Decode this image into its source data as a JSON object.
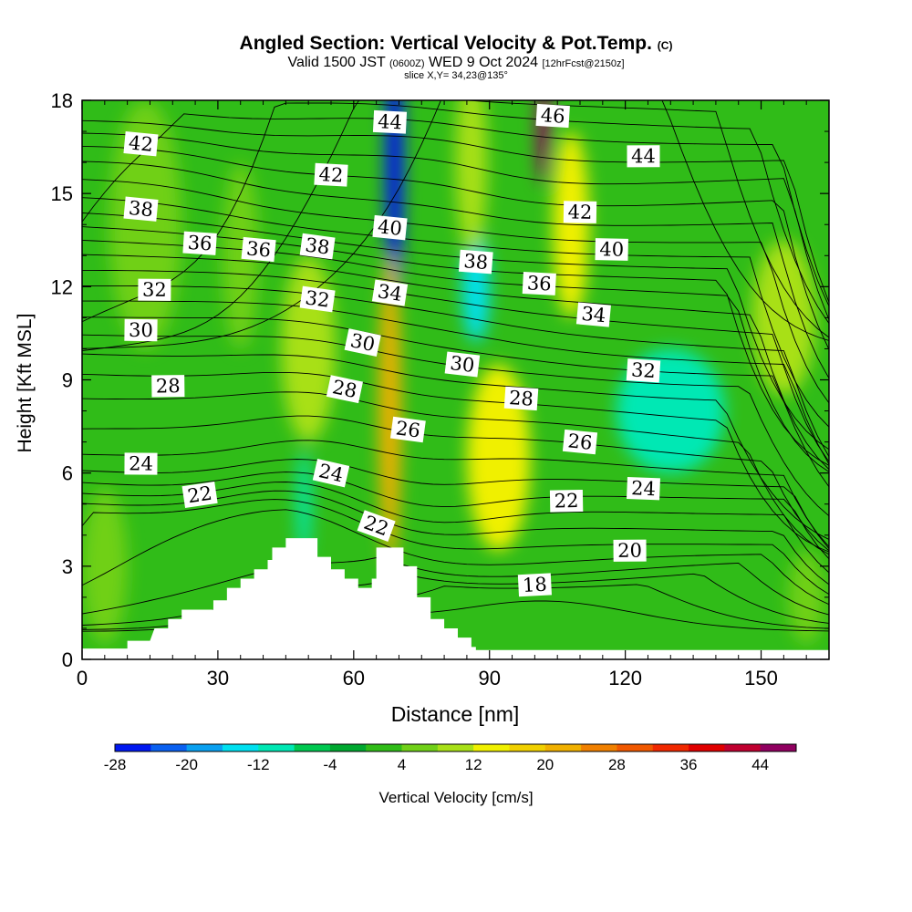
{
  "header": {
    "title": "Angled Section: Vertical Velocity & Pot.Temp.",
    "title_units": "(C)",
    "valid_prefix": "Valid 1500 JST",
    "valid_utc": "(0600Z)",
    "valid_date": "WED 9 Oct 2024",
    "forecast_info": "[12hrFcst@2150z]",
    "slice": "slice X,Y= 34,23@135°"
  },
  "chart_data": {
    "type": "heatmap",
    "xlabel": "Distance [nm]",
    "ylabel": "Height [Kft MSL]",
    "xlim": [
      0,
      165
    ],
    "ylim": [
      0,
      18
    ],
    "x_ticks": [
      0,
      30,
      60,
      90,
      120,
      150
    ],
    "y_ticks": [
      0,
      3,
      6,
      9,
      12,
      15,
      18
    ],
    "grid": false,
    "colorbar": {
      "label": "Vertical Velocity [cm/s]",
      "tick_labels": [
        "-28",
        "-20",
        "-12",
        "-4",
        "4",
        "12",
        "20",
        "28",
        "36",
        "44"
      ],
      "bins": [
        -28,
        -24,
        -20,
        -16,
        -12,
        -8,
        -4,
        0,
        4,
        8,
        12,
        16,
        20,
        24,
        28,
        32,
        36,
        40,
        44,
        48
      ],
      "colors": [
        "#0018f0",
        "#0a60f0",
        "#0aa0f0",
        "#00e0f0",
        "#00e8b4",
        "#00c850",
        "#00a830",
        "#30bc18",
        "#70d018",
        "#a8e018",
        "#f0f000",
        "#f0d000",
        "#f0b000",
        "#f08000",
        "#f05800",
        "#f02800",
        "#e00000",
        "#c00030",
        "#900060"
      ]
    },
    "terrain": [
      [
        0,
        0.35
      ],
      [
        10,
        0.35
      ],
      [
        10,
        0.6
      ],
      [
        15,
        0.6
      ],
      [
        16,
        1
      ],
      [
        19,
        1
      ],
      [
        19,
        1.3
      ],
      [
        22,
        1.3
      ],
      [
        22,
        1.6
      ],
      [
        29,
        1.6
      ],
      [
        29,
        1.9
      ],
      [
        32,
        1.9
      ],
      [
        32,
        2.3
      ],
      [
        35,
        2.3
      ],
      [
        35,
        2.6
      ],
      [
        38,
        2.6
      ],
      [
        38,
        2.9
      ],
      [
        41,
        2.9
      ],
      [
        41,
        3.2
      ],
      [
        42,
        3.2
      ],
      [
        42,
        3.6
      ],
      [
        45,
        3.6
      ],
      [
        45,
        3.9
      ],
      [
        52,
        3.9
      ],
      [
        52,
        3.3
      ],
      [
        55,
        3.3
      ],
      [
        55,
        2.9
      ],
      [
        58,
        2.9
      ],
      [
        58,
        2.6
      ],
      [
        61,
        2.6
      ],
      [
        61,
        2.3
      ],
      [
        64,
        2.3
      ],
      [
        64,
        2.6
      ],
      [
        65,
        2.6
      ],
      [
        65,
        3.6
      ],
      [
        71,
        3.6
      ],
      [
        71,
        3.0
      ],
      [
        74,
        3.0
      ],
      [
        74,
        2.0
      ],
      [
        77,
        2.0
      ],
      [
        77,
        1.3
      ],
      [
        80,
        1.3
      ],
      [
        80,
        1.0
      ],
      [
        83,
        1.0
      ],
      [
        83,
        0.7
      ],
      [
        86,
        0.7
      ],
      [
        86,
        0.4
      ],
      [
        87,
        0.4
      ],
      [
        87,
        0.3
      ],
      [
        165,
        0.3
      ]
    ],
    "isentropes": [
      {
        "theta": 18,
        "label": "18",
        "label_at": [
          100,
          2.4
        ]
      },
      {
        "theta": 20,
        "label": "20",
        "label_at": [
          121,
          3.5
        ]
      },
      {
        "theta": 22,
        "label": "22",
        "label_at": [
          26,
          5.3
        ]
      },
      {
        "theta": 22,
        "label": "22",
        "label_at": [
          65,
          4.3
        ]
      },
      {
        "theta": 22,
        "label": "22",
        "label_at": [
          107,
          5.1
        ]
      },
      {
        "theta": 24,
        "label": "24",
        "label_at": [
          13,
          6.3
        ]
      },
      {
        "theta": 24,
        "label": "24",
        "label_at": [
          55,
          6.0
        ]
      },
      {
        "theta": 24,
        "label": "24",
        "label_at": [
          124,
          5.5
        ]
      },
      {
        "theta": 26,
        "label": "26",
        "label_at": [
          72,
          7.4
        ]
      },
      {
        "theta": 26,
        "label": "26",
        "label_at": [
          110,
          7.0
        ]
      },
      {
        "theta": 28,
        "label": "28",
        "label_at": [
          19,
          8.8
        ]
      },
      {
        "theta": 28,
        "label": "28",
        "label_at": [
          58,
          8.7
        ]
      },
      {
        "theta": 28,
        "label": "28",
        "label_at": [
          97,
          8.4
        ]
      },
      {
        "theta": 30,
        "label": "30",
        "label_at": [
          13,
          10.6
        ]
      },
      {
        "theta": 30,
        "label": "30",
        "label_at": [
          62,
          10.2
        ]
      },
      {
        "theta": 30,
        "label": "30",
        "label_at": [
          84,
          9.5
        ]
      },
      {
        "theta": 32,
        "label": "32",
        "label_at": [
          16,
          11.9
        ]
      },
      {
        "theta": 32,
        "label": "32",
        "label_at": [
          52,
          11.6
        ]
      },
      {
        "theta": 32,
        "label": "32",
        "label_at": [
          124,
          9.3
        ]
      },
      {
        "theta": 34,
        "label": "34",
        "label_at": [
          68,
          11.8
        ]
      },
      {
        "theta": 34,
        "label": "34",
        "label_at": [
          113,
          11.1
        ]
      },
      {
        "theta": 36,
        "label": "36",
        "label_at": [
          26,
          13.4
        ]
      },
      {
        "theta": 36,
        "label": "36",
        "label_at": [
          39,
          13.2
        ]
      },
      {
        "theta": 36,
        "label": "36",
        "label_at": [
          101,
          12.1
        ]
      },
      {
        "theta": 38,
        "label": "38",
        "label_at": [
          13,
          14.5
        ]
      },
      {
        "theta": 38,
        "label": "38",
        "label_at": [
          52,
          13.3
        ]
      },
      {
        "theta": 38,
        "label": "38",
        "label_at": [
          87,
          12.8
        ]
      },
      {
        "theta": 40,
        "label": "40",
        "label_at": [
          68,
          13.9
        ]
      },
      {
        "theta": 40,
        "label": "40",
        "label_at": [
          117,
          13.2
        ]
      },
      {
        "theta": 42,
        "label": "42",
        "label_at": [
          13,
          16.6
        ]
      },
      {
        "theta": 42,
        "label": "42",
        "label_at": [
          55,
          15.6
        ]
      },
      {
        "theta": 42,
        "label": "42",
        "label_at": [
          110,
          14.4
        ]
      },
      {
        "theta": 44,
        "label": "44",
        "label_at": [
          68,
          17.3
        ]
      },
      {
        "theta": 44,
        "label": "44",
        "label_at": [
          124,
          16.2
        ]
      },
      {
        "theta": 46,
        "label": "46",
        "label_at": [
          104,
          17.5
        ]
      }
    ],
    "vertical_velocity_features": [
      {
        "x": 69,
        "y": 16,
        "w": 4,
        "h": 9,
        "value": -26
      },
      {
        "x": 87,
        "y": 12,
        "w": 6,
        "h": 3.6,
        "value": -16
      },
      {
        "x": 49,
        "y": 5,
        "w": 3,
        "h": 3.5,
        "value": -10
      },
      {
        "x": 102,
        "y": 17,
        "w": 3,
        "h": 3.5,
        "value": 44
      },
      {
        "x": 108,
        "y": 14,
        "w": 8,
        "h": 6,
        "value": 14
      },
      {
        "x": 92,
        "y": 6.5,
        "w": 14,
        "h": 6,
        "value": 13
      },
      {
        "x": 68,
        "y": 8,
        "w": 5,
        "h": 10,
        "value": 20
      },
      {
        "x": 50,
        "y": 10,
        "w": 12,
        "h": 6,
        "value": 9
      },
      {
        "x": 86,
        "y": 16,
        "w": 7,
        "h": 6,
        "value": 10
      },
      {
        "x": 155,
        "y": 11,
        "w": 14,
        "h": 5,
        "value": 9
      },
      {
        "x": 130,
        "y": 8,
        "w": 24,
        "h": 4,
        "value": -10
      },
      {
        "x": 14,
        "y": 14,
        "w": 16,
        "h": 8,
        "value": 6
      },
      {
        "x": 35,
        "y": 13,
        "w": 8,
        "h": 6,
        "value": 5
      },
      {
        "x": 160,
        "y": 2,
        "w": 8,
        "h": 3,
        "value": 7
      },
      {
        "x": 5,
        "y": 3,
        "w": 10,
        "h": 5,
        "value": 4
      }
    ]
  }
}
